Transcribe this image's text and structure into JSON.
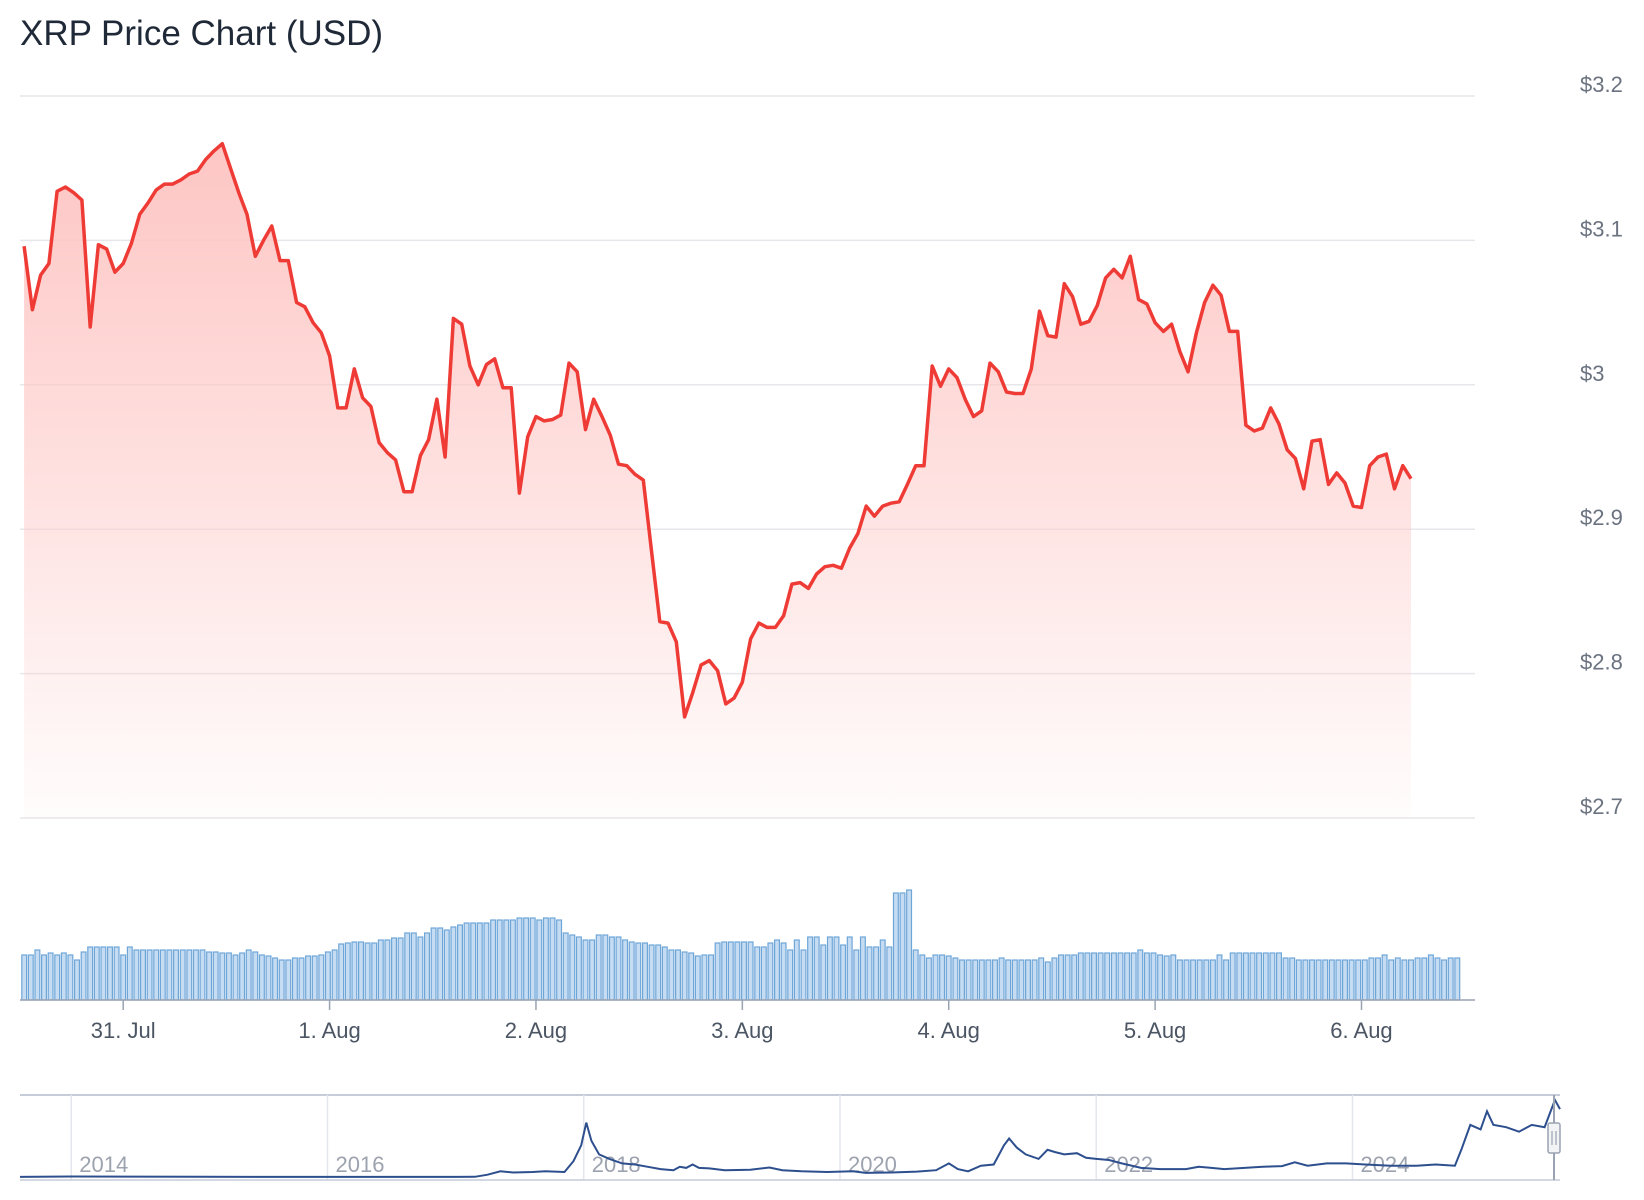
{
  "title": "XRP Price Chart (USD)",
  "colors": {
    "price_line": "#ef3b36",
    "area_top": "#fdc6c4",
    "volume_fill": "#c5dcf2",
    "volume_stroke": "#6ea6d8",
    "navigator_line": "#2d4f8e",
    "grid": "#e7e7eb"
  },
  "chart_data": {
    "type": "line",
    "title": "XRP Price Chart (USD)",
    "ylim": [
      2.7,
      3.2
    ],
    "y_ticks": [
      {
        "value": 3.2,
        "label": "$3.2"
      },
      {
        "value": 3.1,
        "label": "$3.1"
      },
      {
        "value": 3.0,
        "label": "$3"
      },
      {
        "value": 2.9,
        "label": "$2.9"
      },
      {
        "value": 2.8,
        "label": "$2.8"
      },
      {
        "value": 2.7,
        "label": "$2.7"
      }
    ],
    "xlim": [
      30.5,
      37.55
    ],
    "x_ticks": [
      {
        "value": 31,
        "label": "31. Jul"
      },
      {
        "value": 32,
        "label": "1. Aug"
      },
      {
        "value": 33,
        "label": "2. Aug"
      },
      {
        "value": 34,
        "label": "3. Aug"
      },
      {
        "value": 35,
        "label": "4. Aug"
      },
      {
        "value": 36,
        "label": "5. Aug"
      },
      {
        "value": 37,
        "label": "6. Aug"
      }
    ],
    "price_series": {
      "name": "XRP price (USD)",
      "points": [
        [
          30.52,
          3.096
        ],
        [
          30.56,
          3.052
        ],
        [
          30.6,
          3.076
        ],
        [
          30.64,
          3.084
        ],
        [
          30.68,
          3.134
        ],
        [
          30.72,
          3.137
        ],
        [
          30.76,
          3.133
        ],
        [
          30.8,
          3.128
        ],
        [
          30.84,
          3.04
        ],
        [
          30.88,
          3.097
        ],
        [
          30.92,
          3.094
        ],
        [
          30.96,
          3.078
        ],
        [
          31.0,
          3.084
        ],
        [
          31.04,
          3.098
        ],
        [
          31.08,
          3.118
        ],
        [
          31.12,
          3.126
        ],
        [
          31.16,
          3.135
        ],
        [
          31.2,
          3.139
        ],
        [
          31.24,
          3.139
        ],
        [
          31.28,
          3.142
        ],
        [
          31.32,
          3.146
        ],
        [
          31.36,
          3.148
        ],
        [
          31.4,
          3.156
        ],
        [
          31.44,
          3.162
        ],
        [
          31.48,
          3.167
        ],
        [
          31.52,
          3.15
        ],
        [
          31.56,
          3.133
        ],
        [
          31.6,
          3.118
        ],
        [
          31.64,
          3.089
        ],
        [
          31.68,
          3.1
        ],
        [
          31.72,
          3.11
        ],
        [
          31.76,
          3.086
        ],
        [
          31.8,
          3.086
        ],
        [
          31.84,
          3.057
        ],
        [
          31.88,
          3.054
        ],
        [
          31.92,
          3.043
        ],
        [
          31.96,
          3.036
        ],
        [
          32.0,
          3.02
        ],
        [
          32.04,
          2.984
        ],
        [
          32.08,
          2.984
        ],
        [
          32.12,
          3.011
        ],
        [
          32.16,
          2.991
        ],
        [
          32.2,
          2.985
        ],
        [
          32.24,
          2.96
        ],
        [
          32.28,
          2.953
        ],
        [
          32.32,
          2.948
        ],
        [
          32.36,
          2.926
        ],
        [
          32.4,
          2.926
        ],
        [
          32.44,
          2.951
        ],
        [
          32.48,
          2.962
        ],
        [
          32.52,
          2.99
        ],
        [
          32.56,
          2.95
        ],
        [
          32.6,
          3.046
        ],
        [
          32.64,
          3.042
        ],
        [
          32.68,
          3.013
        ],
        [
          32.72,
          3.0
        ],
        [
          32.76,
          3.014
        ],
        [
          32.8,
          3.018
        ],
        [
          32.84,
          2.998
        ],
        [
          32.88,
          2.998
        ],
        [
          32.92,
          2.925
        ],
        [
          32.96,
          2.964
        ],
        [
          33.0,
          2.978
        ],
        [
          33.04,
          2.975
        ],
        [
          33.08,
          2.976
        ],
        [
          33.12,
          2.979
        ],
        [
          33.16,
          3.015
        ],
        [
          33.2,
          3.009
        ],
        [
          33.24,
          2.969
        ],
        [
          33.28,
          2.99
        ],
        [
          33.32,
          2.978
        ],
        [
          33.36,
          2.965
        ],
        [
          33.4,
          2.945
        ],
        [
          33.44,
          2.944
        ],
        [
          33.48,
          2.938
        ],
        [
          33.52,
          2.934
        ],
        [
          33.56,
          2.885
        ],
        [
          33.6,
          2.836
        ],
        [
          33.64,
          2.835
        ],
        [
          33.68,
          2.822
        ],
        [
          33.72,
          2.77
        ],
        [
          33.76,
          2.787
        ],
        [
          33.8,
          2.806
        ],
        [
          33.84,
          2.809
        ],
        [
          33.88,
          2.802
        ],
        [
          33.92,
          2.779
        ],
        [
          33.96,
          2.783
        ],
        [
          34.0,
          2.794
        ],
        [
          34.04,
          2.824
        ],
        [
          34.08,
          2.835
        ],
        [
          34.12,
          2.832
        ],
        [
          34.16,
          2.832
        ],
        [
          34.2,
          2.84
        ],
        [
          34.24,
          2.862
        ],
        [
          34.28,
          2.863
        ],
        [
          34.32,
          2.859
        ],
        [
          34.36,
          2.869
        ],
        [
          34.4,
          2.874
        ],
        [
          34.44,
          2.875
        ],
        [
          34.48,
          2.873
        ],
        [
          34.52,
          2.887
        ],
        [
          34.56,
          2.897
        ],
        [
          34.6,
          2.916
        ],
        [
          34.64,
          2.909
        ],
        [
          34.68,
          2.916
        ],
        [
          34.72,
          2.918
        ],
        [
          34.76,
          2.919
        ],
        [
          34.8,
          2.931
        ],
        [
          34.84,
          2.944
        ],
        [
          34.88,
          2.944
        ],
        [
          34.92,
          3.013
        ],
        [
          34.96,
          2.999
        ],
        [
          35.0,
          3.011
        ],
        [
          35.04,
          3.005
        ],
        [
          35.08,
          2.99
        ],
        [
          35.12,
          2.978
        ],
        [
          35.16,
          2.982
        ],
        [
          35.2,
          3.015
        ],
        [
          35.24,
          3.009
        ],
        [
          35.28,
          2.995
        ],
        [
          35.32,
          2.994
        ],
        [
          35.36,
          2.994
        ],
        [
          35.4,
          3.011
        ],
        [
          35.44,
          3.051
        ],
        [
          35.48,
          3.034
        ],
        [
          35.52,
          3.033
        ],
        [
          35.56,
          3.07
        ],
        [
          35.6,
          3.061
        ],
        [
          35.64,
          3.042
        ],
        [
          35.68,
          3.044
        ],
        [
          35.72,
          3.055
        ],
        [
          35.76,
          3.074
        ],
        [
          35.8,
          3.08
        ],
        [
          35.84,
          3.074
        ],
        [
          35.88,
          3.089
        ],
        [
          35.92,
          3.059
        ],
        [
          35.96,
          3.056
        ],
        [
          36.0,
          3.043
        ],
        [
          36.04,
          3.037
        ],
        [
          36.08,
          3.042
        ],
        [
          36.12,
          3.023
        ],
        [
          36.16,
          3.009
        ],
        [
          36.2,
          3.036
        ],
        [
          36.24,
          3.057
        ],
        [
          36.28,
          3.069
        ],
        [
          36.32,
          3.062
        ],
        [
          36.36,
          3.037
        ],
        [
          36.4,
          3.037
        ],
        [
          36.44,
          2.972
        ],
        [
          36.48,
          2.968
        ],
        [
          36.52,
          2.97
        ],
        [
          36.56,
          2.984
        ],
        [
          36.6,
          2.973
        ],
        [
          36.64,
          2.955
        ],
        [
          36.68,
          2.949
        ],
        [
          36.72,
          2.928
        ],
        [
          36.76,
          2.961
        ],
        [
          36.8,
          2.962
        ],
        [
          36.84,
          2.931
        ],
        [
          36.88,
          2.939
        ],
        [
          36.92,
          2.932
        ],
        [
          36.96,
          2.916
        ],
        [
          37.0,
          2.915
        ],
        [
          37.04,
          2.944
        ],
        [
          37.08,
          2.95
        ],
        [
          37.12,
          2.952
        ],
        [
          37.16,
          2.928
        ],
        [
          37.2,
          2.944
        ],
        [
          37.24,
          2.935
        ]
      ]
    },
    "volume_series": {
      "name": "Volume (relative)",
      "start": 30.52,
      "step": 0.032,
      "values": [
        0.45,
        0.45,
        0.5,
        0.45,
        0.47,
        0.45,
        0.47,
        0.45,
        0.4,
        0.48,
        0.53,
        0.53,
        0.53,
        0.53,
        0.53,
        0.45,
        0.53,
        0.5,
        0.5,
        0.5,
        0.5,
        0.5,
        0.5,
        0.5,
        0.5,
        0.5,
        0.5,
        0.5,
        0.48,
        0.48,
        0.47,
        0.47,
        0.45,
        0.47,
        0.5,
        0.48,
        0.45,
        0.44,
        0.42,
        0.4,
        0.4,
        0.42,
        0.42,
        0.44,
        0.44,
        0.45,
        0.48,
        0.5,
        0.56,
        0.57,
        0.58,
        0.58,
        0.57,
        0.57,
        0.6,
        0.6,
        0.62,
        0.62,
        0.67,
        0.67,
        0.63,
        0.67,
        0.72,
        0.72,
        0.7,
        0.73,
        0.75,
        0.77,
        0.77,
        0.77,
        0.77,
        0.8,
        0.8,
        0.8,
        0.8,
        0.82,
        0.82,
        0.82,
        0.8,
        0.82,
        0.82,
        0.8,
        0.67,
        0.65,
        0.63,
        0.6,
        0.6,
        0.65,
        0.65,
        0.63,
        0.63,
        0.6,
        0.58,
        0.57,
        0.57,
        0.55,
        0.55,
        0.53,
        0.5,
        0.5,
        0.48,
        0.47,
        0.44,
        0.45,
        0.45,
        0.57,
        0.58,
        0.58,
        0.58,
        0.58,
        0.58,
        0.53,
        0.53,
        0.57,
        0.6,
        0.57,
        0.5,
        0.6,
        0.5,
        0.63,
        0.63,
        0.55,
        0.63,
        0.63,
        0.55,
        0.63,
        0.5,
        0.63,
        0.53,
        0.53,
        0.6,
        0.53,
        1.07,
        1.07,
        1.1,
        0.5,
        0.45,
        0.42,
        0.45,
        0.45,
        0.44,
        0.42,
        0.4,
        0.4,
        0.4,
        0.4,
        0.4,
        0.4,
        0.42,
        0.4,
        0.4,
        0.4,
        0.4,
        0.4,
        0.42,
        0.38,
        0.42,
        0.45,
        0.45,
        0.45,
        0.47,
        0.47,
        0.47,
        0.47,
        0.47,
        0.47,
        0.47,
        0.47,
        0.47,
        0.5,
        0.47,
        0.47,
        0.45,
        0.44,
        0.45,
        0.4,
        0.4,
        0.4,
        0.4,
        0.4,
        0.4,
        0.45,
        0.4,
        0.47,
        0.47,
        0.47,
        0.47,
        0.47,
        0.47,
        0.47,
        0.47,
        0.42,
        0.42,
        0.4,
        0.4,
        0.4,
        0.4,
        0.4,
        0.4,
        0.4,
        0.4,
        0.4,
        0.4,
        0.4,
        0.42,
        0.42,
        0.45,
        0.4,
        0.42,
        0.4,
        0.4,
        0.42,
        0.42,
        0.45,
        0.42,
        0.4,
        0.42,
        0.42
      ]
    },
    "navigator": {
      "name": "XRP price history",
      "x_ticks": [
        {
          "value": 2014,
          "label": "2014"
        },
        {
          "value": 2016,
          "label": "2016"
        },
        {
          "value": 2018,
          "label": "2018"
        },
        {
          "value": 2020,
          "label": "2020"
        },
        {
          "value": 2022,
          "label": "2022"
        },
        {
          "value": 2024,
          "label": "2024"
        }
      ],
      "xlim": [
        2013.6,
        2025.62
      ],
      "ylim": [
        0,
        3.4
      ],
      "points": [
        [
          2013.6,
          0.005
        ],
        [
          2014.0,
          0.02
        ],
        [
          2015.0,
          0.01
        ],
        [
          2016.0,
          0.006
        ],
        [
          2017.0,
          0.006
        ],
        [
          2017.15,
          0.008
        ],
        [
          2017.25,
          0.1
        ],
        [
          2017.35,
          0.25
        ],
        [
          2017.45,
          0.2
        ],
        [
          2017.6,
          0.22
        ],
        [
          2017.7,
          0.25
        ],
        [
          2017.85,
          0.22
        ],
        [
          2017.92,
          0.7
        ],
        [
          2017.98,
          1.4
        ],
        [
          2018.02,
          2.4
        ],
        [
          2018.06,
          1.6
        ],
        [
          2018.12,
          1.0
        ],
        [
          2018.2,
          0.8
        ],
        [
          2018.3,
          0.6
        ],
        [
          2018.4,
          0.55
        ],
        [
          2018.5,
          0.45
        ],
        [
          2018.6,
          0.35
        ],
        [
          2018.7,
          0.3
        ],
        [
          2018.75,
          0.45
        ],
        [
          2018.8,
          0.4
        ],
        [
          2018.85,
          0.55
        ],
        [
          2018.9,
          0.4
        ],
        [
          2018.98,
          0.38
        ],
        [
          2019.1,
          0.3
        ],
        [
          2019.3,
          0.32
        ],
        [
          2019.45,
          0.42
        ],
        [
          2019.55,
          0.3
        ],
        [
          2019.7,
          0.25
        ],
        [
          2019.9,
          0.22
        ],
        [
          2020.1,
          0.25
        ],
        [
          2020.2,
          0.18
        ],
        [
          2020.4,
          0.2
        ],
        [
          2020.6,
          0.24
        ],
        [
          2020.75,
          0.3
        ],
        [
          2020.85,
          0.6
        ],
        [
          2020.92,
          0.35
        ],
        [
          2021.0,
          0.25
        ],
        [
          2021.1,
          0.5
        ],
        [
          2021.2,
          0.55
        ],
        [
          2021.28,
          1.4
        ],
        [
          2021.32,
          1.7
        ],
        [
          2021.38,
          1.3
        ],
        [
          2021.45,
          1.0
        ],
        [
          2021.55,
          0.8
        ],
        [
          2021.62,
          1.2
        ],
        [
          2021.68,
          1.1
        ],
        [
          2021.75,
          1.0
        ],
        [
          2021.85,
          1.05
        ],
        [
          2021.92,
          0.85
        ],
        [
          2022.0,
          0.8
        ],
        [
          2022.1,
          0.75
        ],
        [
          2022.2,
          0.6
        ],
        [
          2022.35,
          0.4
        ],
        [
          2022.5,
          0.35
        ],
        [
          2022.7,
          0.35
        ],
        [
          2022.8,
          0.45
        ],
        [
          2022.9,
          0.4
        ],
        [
          2023.0,
          0.35
        ],
        [
          2023.3,
          0.45
        ],
        [
          2023.45,
          0.48
        ],
        [
          2023.55,
          0.65
        ],
        [
          2023.65,
          0.5
        ],
        [
          2023.8,
          0.6
        ],
        [
          2023.95,
          0.6
        ],
        [
          2024.1,
          0.55
        ],
        [
          2024.3,
          0.5
        ],
        [
          2024.5,
          0.5
        ],
        [
          2024.65,
          0.55
        ],
        [
          2024.8,
          0.5
        ],
        [
          2024.85,
          1.2
        ],
        [
          2024.92,
          2.3
        ],
        [
          2025.0,
          2.1
        ],
        [
          2025.05,
          2.9
        ],
        [
          2025.1,
          2.3
        ],
        [
          2025.2,
          2.2
        ],
        [
          2025.3,
          2.0
        ],
        [
          2025.4,
          2.3
        ],
        [
          2025.5,
          2.2
        ],
        [
          2025.58,
          3.4
        ],
        [
          2025.62,
          3.0
        ]
      ]
    }
  }
}
